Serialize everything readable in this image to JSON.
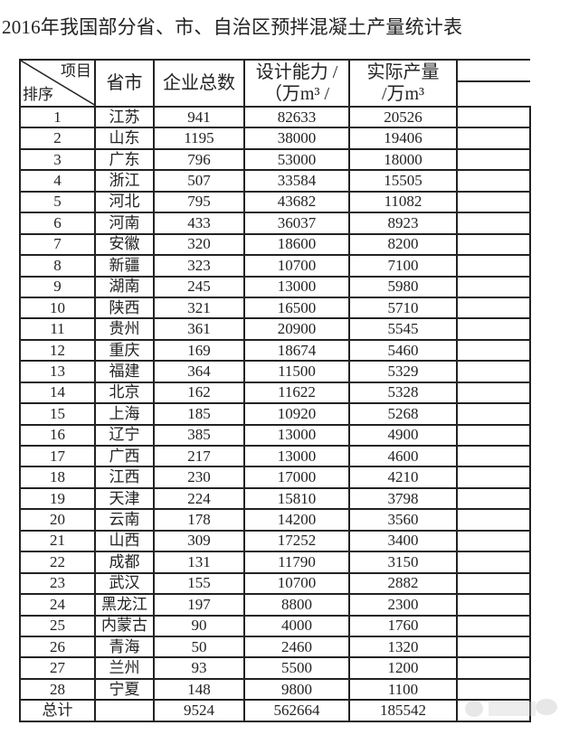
{
  "title": "2016年我国部分省、市、自治区预拌混凝土产量统计表",
  "headers": {
    "corner_top": "项目",
    "corner_bottom": "排序",
    "province": "省市",
    "enterprises": "企业总数",
    "capacity_line1": "设计能力 /",
    "capacity_line2": "（万m³ /",
    "output_line1": "实际产量",
    "output_line2": "/万m³"
  },
  "rows": [
    {
      "rank": "1",
      "province": "江苏",
      "enterprises": "941",
      "capacity": "82633",
      "output": "20526"
    },
    {
      "rank": "2",
      "province": "山东",
      "enterprises": "1195",
      "capacity": "38000",
      "output": "19406"
    },
    {
      "rank": "3",
      "province": "广东",
      "enterprises": "796",
      "capacity": "53000",
      "output": "18000"
    },
    {
      "rank": "4",
      "province": "浙江",
      "enterprises": "507",
      "capacity": "33584",
      "output": "15505"
    },
    {
      "rank": "5",
      "province": "河北",
      "enterprises": "795",
      "capacity": "43682",
      "output": "11082"
    },
    {
      "rank": "6",
      "province": "河南",
      "enterprises": "433",
      "capacity": "36037",
      "output": "8923"
    },
    {
      "rank": "7",
      "province": "安徽",
      "enterprises": "320",
      "capacity": "18600",
      "output": "8200"
    },
    {
      "rank": "8",
      "province": "新疆",
      "enterprises": "323",
      "capacity": "10700",
      "output": "7100"
    },
    {
      "rank": "9",
      "province": "湖南",
      "enterprises": "245",
      "capacity": "13000",
      "output": "5980"
    },
    {
      "rank": "10",
      "province": "陕西",
      "enterprises": "321",
      "capacity": "16500",
      "output": "5710"
    },
    {
      "rank": "11",
      "province": "贵州",
      "enterprises": "361",
      "capacity": "20900",
      "output": "5545"
    },
    {
      "rank": "12",
      "province": "重庆",
      "enterprises": "169",
      "capacity": "18674",
      "output": "5460"
    },
    {
      "rank": "13",
      "province": "福建",
      "enterprises": "364",
      "capacity": "11500",
      "output": "5329"
    },
    {
      "rank": "14",
      "province": "北京",
      "enterprises": "162",
      "capacity": "11622",
      "output": "5328"
    },
    {
      "rank": "15",
      "province": "上海",
      "enterprises": "185",
      "capacity": "10920",
      "output": "5268"
    },
    {
      "rank": "16",
      "province": "辽宁",
      "enterprises": "385",
      "capacity": "13000",
      "output": "4900"
    },
    {
      "rank": "17",
      "province": "广西",
      "enterprises": "217",
      "capacity": "13000",
      "output": "4600"
    },
    {
      "rank": "18",
      "province": "江西",
      "enterprises": "230",
      "capacity": "17000",
      "output": "4210"
    },
    {
      "rank": "19",
      "province": "天津",
      "enterprises": "224",
      "capacity": "15810",
      "output": "3798"
    },
    {
      "rank": "20",
      "province": "云南",
      "enterprises": "178",
      "capacity": "14200",
      "output": "3560"
    },
    {
      "rank": "21",
      "province": "山西",
      "enterprises": "309",
      "capacity": "17252",
      "output": "3400"
    },
    {
      "rank": "22",
      "province": "成都",
      "enterprises": "131",
      "capacity": "11790",
      "output": "3150"
    },
    {
      "rank": "23",
      "province": "武汉",
      "enterprises": "155",
      "capacity": "10700",
      "output": "2882"
    },
    {
      "rank": "24",
      "province": "黑龙江",
      "enterprises": "197",
      "capacity": "8800",
      "output": "2300"
    },
    {
      "rank": "25",
      "province": "内蒙古",
      "enterprises": "90",
      "capacity": "4000",
      "output": "1760"
    },
    {
      "rank": "26",
      "province": "青海",
      "enterprises": "50",
      "capacity": "2460",
      "output": "1320"
    },
    {
      "rank": "27",
      "province": "兰州",
      "enterprises": "93",
      "capacity": "5500",
      "output": "1200"
    },
    {
      "rank": "28",
      "province": "宁夏",
      "enterprises": "148",
      "capacity": "9800",
      "output": "1100"
    }
  ],
  "total": {
    "label": "总计",
    "province": "",
    "enterprises": "9524",
    "capacity": "562664",
    "output": "185542"
  }
}
